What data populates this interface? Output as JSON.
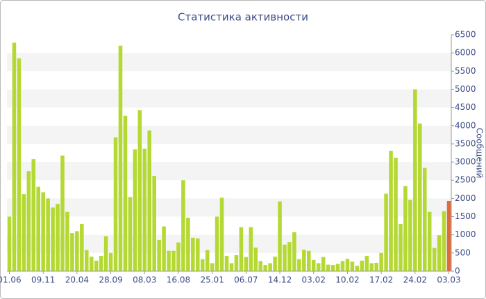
{
  "chart_data": {
    "type": "bar",
    "title": "Статистика активности",
    "y_label": "Сообщений",
    "categories": [
      "01.06",
      null,
      null,
      null,
      null,
      null,
      null,
      "09.11",
      null,
      null,
      null,
      null,
      null,
      null,
      "20.04",
      null,
      null,
      null,
      null,
      null,
      null,
      "28.09",
      null,
      null,
      null,
      null,
      null,
      null,
      "08.03",
      null,
      null,
      null,
      null,
      null,
      null,
      "16.08",
      null,
      null,
      null,
      null,
      null,
      null,
      "25.01",
      null,
      null,
      null,
      null,
      null,
      null,
      "06.07",
      null,
      null,
      null,
      null,
      null,
      null,
      "14.12",
      null,
      null,
      null,
      null,
      null,
      null,
      "03.02",
      null,
      null,
      null,
      null,
      null,
      null,
      "10.02",
      null,
      null,
      null,
      null,
      null,
      null,
      "17.02",
      null,
      null,
      null,
      null,
      null,
      null,
      "24.02",
      null,
      null,
      null,
      null,
      null,
      null,
      "03.03"
    ],
    "values": [
      1500,
      6280,
      5850,
      2120,
      2750,
      3080,
      2320,
      2170,
      2000,
      1750,
      1850,
      3180,
      1630,
      1050,
      1100,
      1300,
      580,
      400,
      290,
      420,
      960,
      500,
      3680,
      6200,
      4270,
      2040,
      3350,
      4430,
      3370,
      3870,
      2620,
      860,
      1230,
      560,
      560,
      790,
      2500,
      1470,
      920,
      900,
      330,
      580,
      220,
      1500,
      2020,
      420,
      220,
      440,
      1210,
      390,
      1210,
      650,
      280,
      170,
      220,
      400,
      1920,
      730,
      800,
      1070,
      330,
      590,
      560,
      310,
      220,
      390,
      180,
      170,
      200,
      280,
      340,
      260,
      150,
      290,
      420,
      220,
      230,
      500,
      2130,
      3310,
      3120,
      1300,
      2340,
      1960,
      5000,
      4060,
      2840,
      1630,
      640,
      990,
      1650,
      1930
    ],
    "color": "#b5d934",
    "highlight": {
      "index": 91,
      "color": "#e06a3a"
    },
    "ylim": [
      0,
      6500
    ],
    "yticks": [
      0,
      500,
      1000,
      1500,
      2000,
      2500,
      3000,
      3500,
      4000,
      4500,
      5000,
      5500,
      6000,
      6500
    ],
    "grid": true
  }
}
